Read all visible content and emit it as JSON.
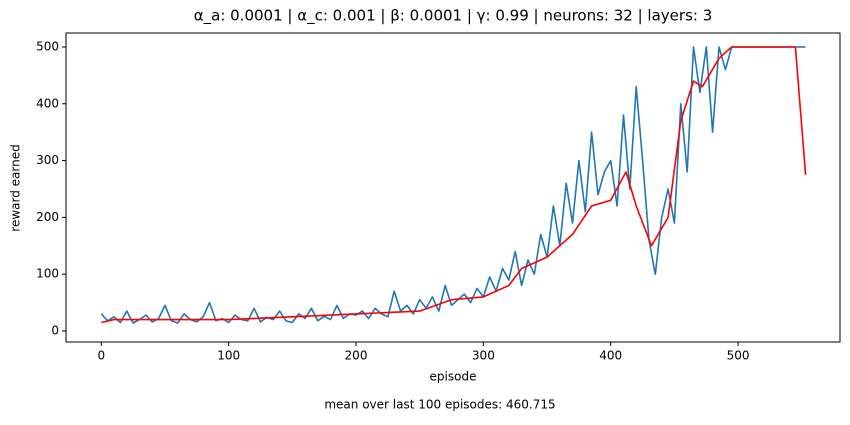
{
  "chart_data": {
    "type": "line",
    "title": "α_a: 0.0001 | α_c: 0.001 | β: 0.0001 | γ: 0.99 | neurons: 32 | layers: 3",
    "x_label": "episode",
    "y_label": "reward earned",
    "footnote": "mean over last 100 episodes: 460.715",
    "xlim": [
      -27.7,
      580
    ],
    "ylim": [
      -19.4,
      524.6
    ],
    "xticks": [
      0,
      100,
      200,
      300,
      400,
      500
    ],
    "yticks": [
      0,
      100,
      200,
      300,
      400,
      500
    ],
    "series": [
      {
        "color": "#1f77b4",
        "x": [
          0,
          5,
          10,
          15,
          20,
          25,
          30,
          35,
          40,
          45,
          50,
          55,
          60,
          65,
          70,
          75,
          80,
          85,
          90,
          95,
          100,
          105,
          110,
          115,
          120,
          125,
          130,
          135,
          140,
          145,
          150,
          155,
          160,
          165,
          170,
          175,
          180,
          185,
          190,
          195,
          200,
          205,
          210,
          215,
          220,
          225,
          230,
          235,
          240,
          245,
          250,
          255,
          260,
          265,
          270,
          275,
          280,
          285,
          290,
          295,
          300,
          305,
          310,
          315,
          320,
          325,
          330,
          335,
          340,
          345,
          350,
          355,
          360,
          365,
          370,
          375,
          380,
          385,
          390,
          395,
          400,
          405,
          410,
          415,
          420,
          425,
          430,
          435,
          440,
          445,
          450,
          455,
          460,
          465,
          470,
          475,
          480,
          485,
          490,
          495,
          500,
          505,
          510,
          515,
          520,
          525,
          530,
          535,
          540,
          545,
          550,
          553
        ],
        "values": [
          30,
          18,
          25,
          15,
          35,
          14,
          20,
          28,
          16,
          22,
          45,
          18,
          14,
          30,
          20,
          16,
          25,
          50,
          18,
          22,
          15,
          28,
          20,
          18,
          40,
          16,
          24,
          20,
          35,
          18,
          15,
          30,
          22,
          40,
          18,
          26,
          20,
          45,
          22,
          30,
          28,
          35,
          22,
          40,
          30,
          25,
          70,
          35,
          45,
          30,
          55,
          40,
          60,
          35,
          80,
          45,
          55,
          65,
          50,
          75,
          60,
          95,
          70,
          110,
          90,
          140,
          80,
          125,
          100,
          170,
          130,
          220,
          150,
          260,
          190,
          300,
          210,
          350,
          240,
          280,
          300,
          220,
          380,
          250,
          430,
          300,
          160,
          100,
          200,
          250,
          190,
          400,
          280,
          500,
          420,
          500,
          350,
          500,
          460,
          500,
          500,
          500,
          500,
          500,
          500,
          500,
          500,
          500,
          500,
          500,
          500,
          500
        ]
      },
      {
        "color": "#ff0000",
        "x": [
          0,
          10,
          100,
          150,
          200,
          250,
          275,
          300,
          320,
          330,
          350,
          370,
          385,
          400,
          412,
          420,
          432,
          445,
          455,
          465,
          472,
          485,
          495,
          545,
          553
        ],
        "values": [
          15,
          20,
          20,
          25,
          30,
          35,
          55,
          60,
          80,
          110,
          130,
          170,
          220,
          230,
          280,
          220,
          150,
          200,
          370,
          440,
          430,
          480,
          500,
          500,
          275
        ]
      }
    ]
  }
}
